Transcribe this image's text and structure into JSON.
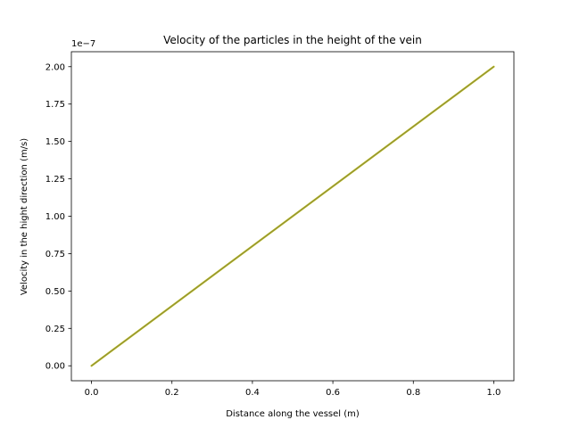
{
  "chart_data": {
    "type": "line",
    "title": "Velocity of the particles in the height of the vein",
    "xlabel": "Distance along the vessel (m)",
    "ylabel": "Velocity in the hight direction (m/s)",
    "y_offset_label": "1e−7",
    "y_scale_factor": 1e-07,
    "xlim": [
      -0.05,
      1.05
    ],
    "ylim": [
      -1e-08,
      2.1e-07
    ],
    "x_ticks": [
      0.0,
      0.2,
      0.4,
      0.6,
      0.8,
      1.0
    ],
    "x_tick_labels": [
      "0.0",
      "0.2",
      "0.4",
      "0.6",
      "0.8",
      "1.0"
    ],
    "y_ticks": [
      0,
      2.5e-08,
      5e-08,
      7.5e-08,
      1e-07,
      1.25e-07,
      1.5e-07,
      1.75e-07,
      2e-07
    ],
    "y_tick_labels": [
      "0.00",
      "0.25",
      "0.50",
      "0.75",
      "1.00",
      "1.25",
      "1.50",
      "1.75",
      "2.00"
    ],
    "grid": false,
    "series": [
      {
        "color": "#bcbd22",
        "x": [
          0.0,
          1.0
        ],
        "y": [
          0.0,
          2e-07
        ]
      },
      {
        "color": "#8c8c3a",
        "x": [
          0.0,
          1.0
        ],
        "y": [
          0.0,
          2e-07
        ]
      }
    ]
  }
}
